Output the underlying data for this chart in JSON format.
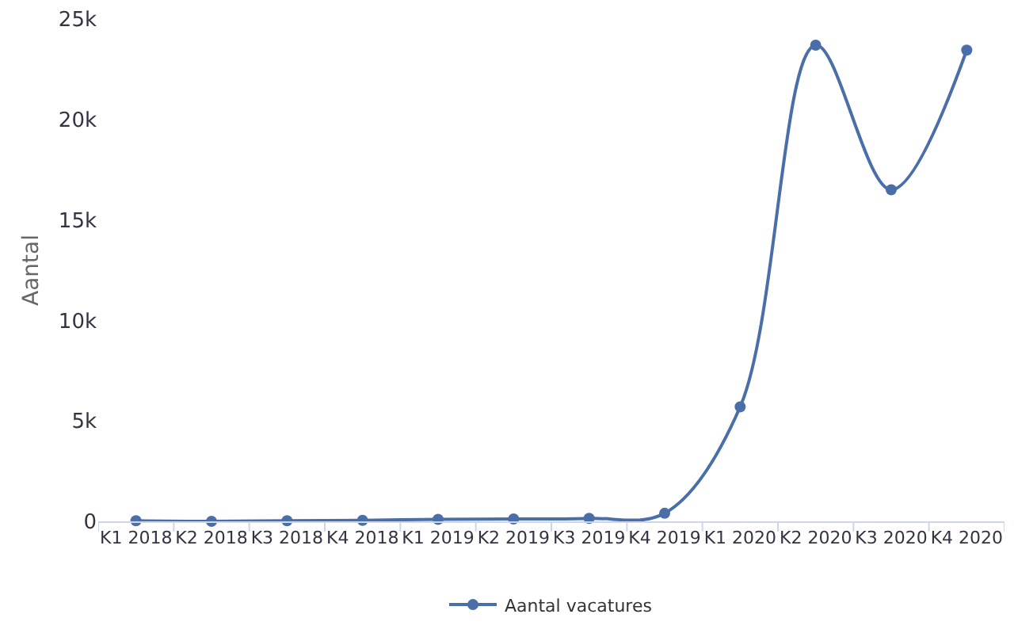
{
  "chart_data": {
    "type": "line",
    "ylabel": "Aantal",
    "categories": [
      "K1 2018",
      "K2 2018",
      "K3 2018",
      "K4 2018",
      "K1 2019",
      "K2 2019",
      "K3 2019",
      "K4 2019",
      "K1 2020",
      "K2 2020",
      "K3 2020",
      "K4 2020"
    ],
    "series": [
      {
        "name": "Aantal vacatures",
        "color": "#4a6fa8",
        "values": [
          30,
          0,
          30,
          50,
          100,
          120,
          150,
          400,
          5700,
          23700,
          16500,
          23450
        ]
      }
    ],
    "ylim": [
      0,
      25000
    ],
    "yticks": [
      0,
      {
        "value": 5000,
        "label": "5k"
      },
      {
        "value": 10000,
        "label": "10k"
      },
      {
        "value": 15000,
        "label": "15k"
      },
      {
        "value": 20000,
        "label": "20k"
      },
      {
        "value": 25000,
        "label": "25k"
      }
    ],
    "grid": false,
    "legend": "bottom",
    "marker": "circle",
    "line_style": "solid"
  }
}
